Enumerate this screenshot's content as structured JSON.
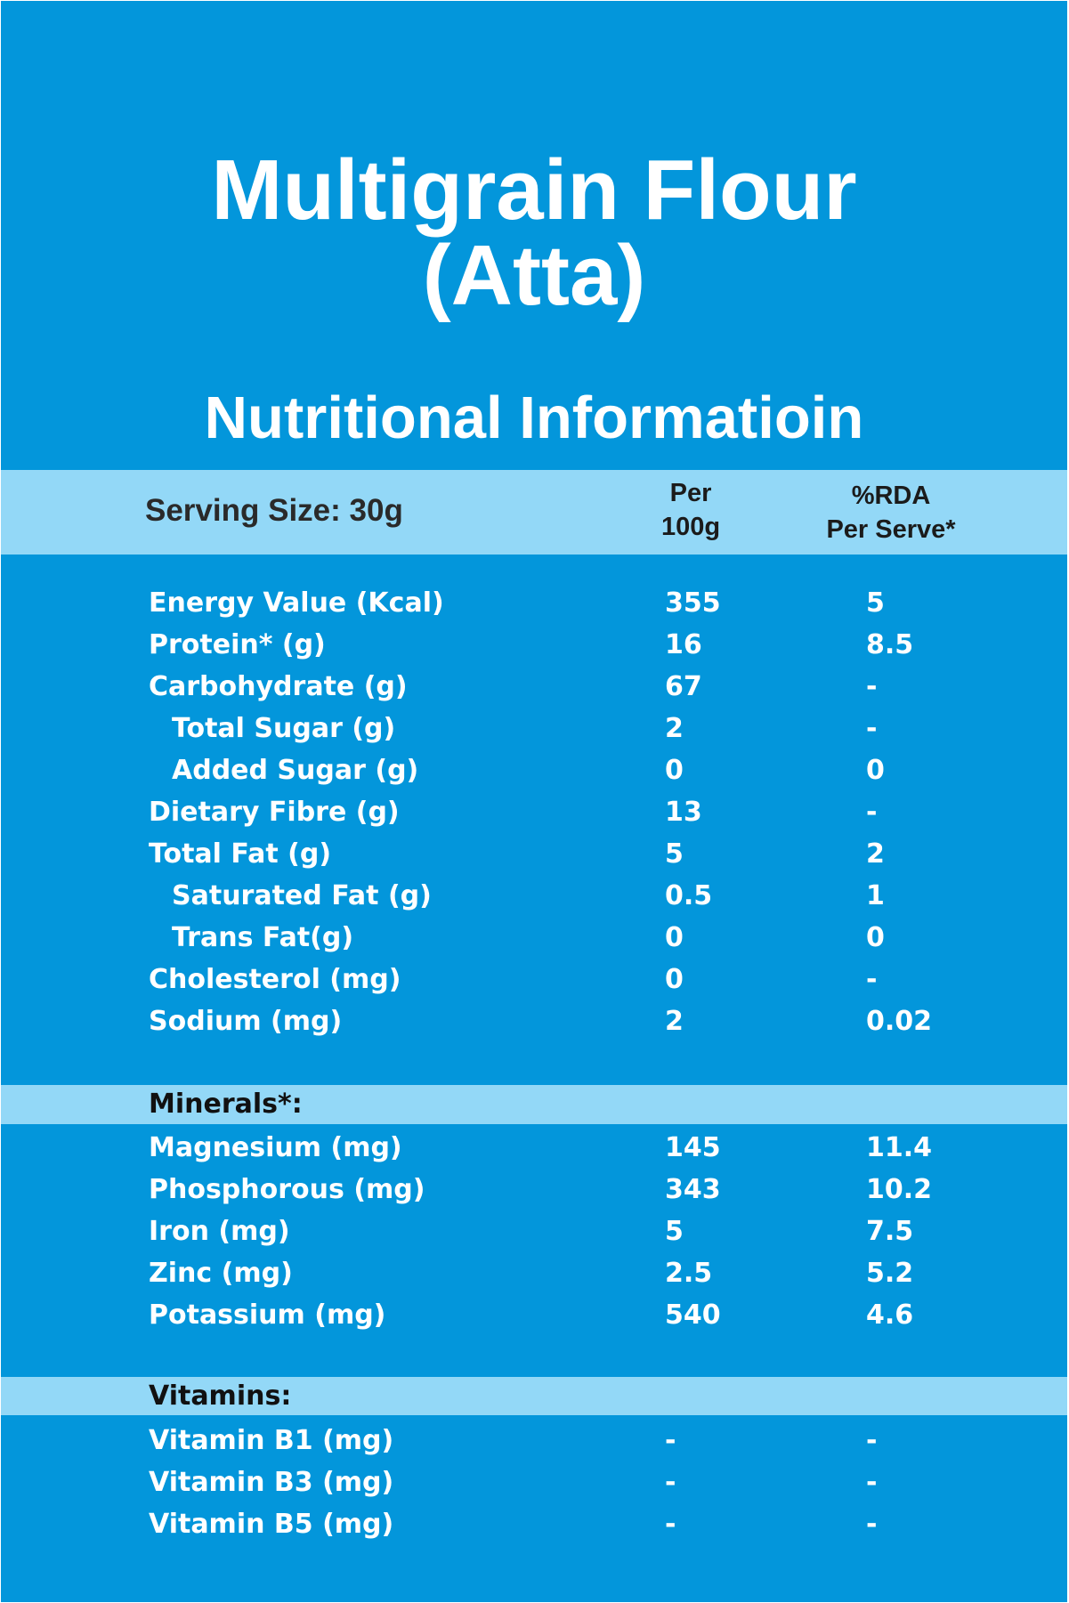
{
  "title": {
    "line1": "Multigrain Flour",
    "line2": "(Atta)"
  },
  "subtitle": "Nutritional Informatioin",
  "header": {
    "serving_size": "Serving Size: 30g",
    "col_per_line1": "Per",
    "col_per_line2": "100g",
    "col_rda_line1": "%RDA",
    "col_rda_line2": "Per Serve*"
  },
  "colors": {
    "background": "#0396db",
    "band": "#93d8f7",
    "text": "#ffffff"
  },
  "nutrients": [
    {
      "label": "Energy Value (Kcal)",
      "per100g": "355",
      "rda": "5"
    },
    {
      "label": "Protein* (g)",
      "per100g": "16",
      "rda": "8.5"
    },
    {
      "label": "Carbohydrate (g)",
      "per100g": "67",
      "rda": "-"
    },
    {
      "label": "Total Sugar (g)",
      "per100g": "2",
      "rda": "-"
    },
    {
      "label": "Added Sugar (g)",
      "per100g": "0",
      "rda": "0"
    },
    {
      "label": "Dietary Fibre (g)",
      "per100g": "13",
      "rda": "-"
    },
    {
      "label": "Total Fat (g)",
      "per100g": "5",
      "rda": "2"
    },
    {
      "label": "Saturated Fat (g)",
      "per100g": "0.5",
      "rda": "1"
    },
    {
      "label": "Trans Fat(g)",
      "per100g": "0",
      "rda": "0"
    },
    {
      "label": "Cholesterol (mg)",
      "per100g": "0",
      "rda": "-"
    },
    {
      "label": "Sodium (mg)",
      "per100g": "2",
      "rda": "0.02"
    }
  ],
  "minerals": {
    "heading": "Minerals*:",
    "items": [
      {
        "label": "Magnesium (mg)",
        "per100g": "145",
        "rda": "11.4"
      },
      {
        "label": "Phosphorous (mg)",
        "per100g": "343",
        "rda": "10.2"
      },
      {
        "label": "Iron (mg)",
        "per100g": "5",
        "rda": "7.5"
      },
      {
        "label": "Zinc (mg)",
        "per100g": "2.5",
        "rda": "5.2"
      },
      {
        "label": "Potassium (mg)",
        "per100g": "540",
        "rda": "4.6"
      }
    ]
  },
  "vitamins": {
    "heading": "Vitamins:",
    "items": [
      {
        "label": "Vitamin B1 (mg)",
        "per100g": "-",
        "rda": "-"
      },
      {
        "label": "Vitamin B3 (mg)",
        "per100g": "-",
        "rda": "-"
      },
      {
        "label": "Vitamin B5 (mg)",
        "per100g": "-",
        "rda": "-"
      }
    ]
  }
}
